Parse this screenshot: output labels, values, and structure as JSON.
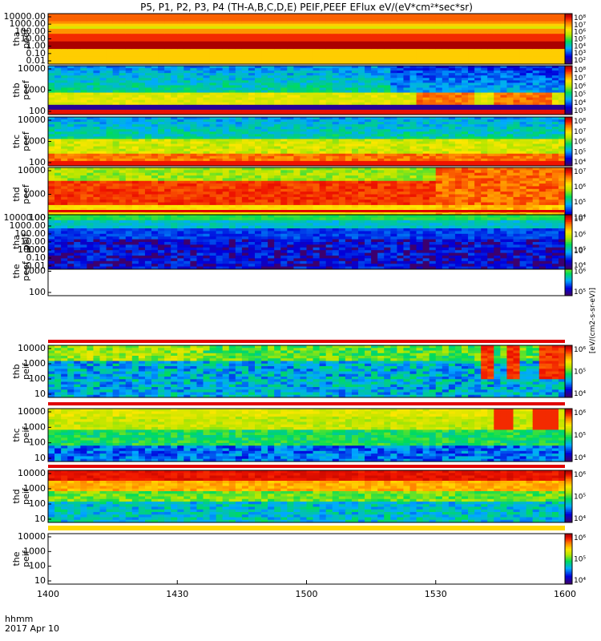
{
  "title": "P5, P1, P2, P3, P4 (TH-A,B,C,D,E) PEIF,PEEF EFlux eV/(eV*cm²*sec*sr)",
  "footer": {
    "line1": "hhmm",
    "line2": "2017 Apr 10"
  },
  "colorbar_unit": "[eV/(cm2-s-sr-eV)]",
  "chart_data": [
    {
      "type": "heatmap",
      "ylabel": [
        "tha",
        "peef"
      ],
      "yticks": [
        "10000.00",
        "1000.00",
        "100.00",
        "10.00",
        "1.00",
        "0.10",
        "0.01"
      ],
      "cbticks": [
        "10⁸",
        "10⁷",
        "10⁶",
        "10⁵",
        "10⁴",
        "10³",
        "10²"
      ],
      "pattern": "A"
    },
    {
      "type": "heatmap",
      "ylabel": [
        "thb",
        "peef"
      ],
      "yticks": [
        "10000",
        "1000",
        "100"
      ],
      "cbticks": [
        "10⁸",
        "10⁷",
        "10⁶",
        "10⁵",
        "10⁴",
        "10³"
      ],
      "pattern": "B"
    },
    {
      "type": "heatmap",
      "ylabel": [
        "thc",
        "peef"
      ],
      "yticks": [
        "10000",
        "1000",
        "100"
      ],
      "cbticks": [
        "10⁸",
        "10⁷",
        "10⁶",
        "10⁵",
        "10⁴"
      ],
      "pattern": "C"
    },
    {
      "type": "heatmap",
      "ylabel": [
        "thd",
        "peef"
      ],
      "yticks": [
        "10000",
        "1000",
        "100"
      ],
      "cbticks": [
        "10⁷",
        "10⁶",
        "10⁵",
        "10⁴"
      ],
      "pattern": "D"
    },
    {
      "type": "heatmap",
      "ylabel": [
        "the",
        "peef"
      ],
      "yticks": [
        "10000",
        "1000",
        "100"
      ],
      "cbticks": [
        "10⁷",
        "10⁶",
        "10⁵"
      ],
      "pattern": "E"
    },
    {
      "type": "heatmap",
      "ylabel": [
        "tha",
        "peif"
      ],
      "yticks": [
        "10000.00",
        "1000.00",
        "100.00",
        "10.00",
        "1.00",
        "0.10",
        "0.01"
      ],
      "cbticks": [
        "10⁷",
        "10⁶",
        "10⁵",
        "10⁴"
      ],
      "pattern": "F"
    },
    {
      "type": "heatmap",
      "ylabel": [
        "thb",
        "peif"
      ],
      "yticks": [
        "10000",
        "1000",
        "100",
        "10"
      ],
      "cbticks": [
        "10⁶",
        "10⁵",
        "10⁴"
      ],
      "pattern": "G"
    },
    {
      "type": "heatmap",
      "ylabel": [
        "thc",
        "peif"
      ],
      "yticks": [
        "10000",
        "1000",
        "100",
        "10"
      ],
      "cbticks": [
        "10⁶",
        "10⁵",
        "10⁴"
      ],
      "pattern": "H"
    },
    {
      "type": "heatmap",
      "ylabel": [
        "thd",
        "peif"
      ],
      "yticks": [
        "10000",
        "1000",
        "100",
        "10"
      ],
      "cbticks": [
        "10⁶",
        "10⁵",
        "10⁴"
      ],
      "pattern": "I"
    },
    {
      "type": "heatmap",
      "ylabel": [
        "the",
        "peif"
      ],
      "yticks": [
        "10000",
        "1000",
        "100",
        "10"
      ],
      "cbticks": [
        "10⁶",
        "10⁵",
        "10⁴"
      ],
      "pattern": "J"
    }
  ],
  "xaxis": {
    "ticks": [
      "1400",
      "1430",
      "1500",
      "1530",
      "1600"
    ]
  }
}
